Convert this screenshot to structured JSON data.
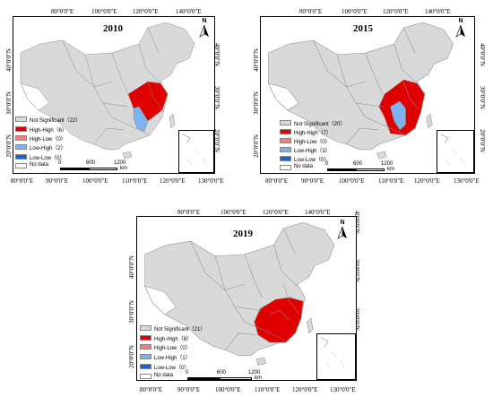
{
  "colors": {
    "not_significant": "#d9d9d9",
    "high_high": "#e00000",
    "high_low": "#f08080",
    "low_high": "#7fb3f0",
    "low_low": "#1f5fd6",
    "no_data": "#ffffff",
    "boundary": "#8c8c8c"
  },
  "icons": {
    "north_arrow": "north-arrow-icon"
  },
  "panels": [
    {
      "year": "2010",
      "north": "N",
      "top_ticks": [
        "80°0'0\"E",
        "100°0'0\"E",
        "120°0'0\"E",
        "140°0'0\"E"
      ],
      "bottom_ticks": [
        "80°0'0\"E",
        "90°0'0\"E",
        "100°0'0\"E",
        "110°0'0\"E",
        "120°0'0\"E",
        "130°0'0\"E"
      ],
      "left_ticks": [
        "40°0'0\"N",
        "30°0'0\"N",
        "20°0'0\"N"
      ],
      "right_ticks": [
        "40°0'0\"N",
        "30°0'0\"N",
        "20°0'0\"N"
      ],
      "legend": [
        {
          "key": "not_significant",
          "label": "Not Significant（22）"
        },
        {
          "key": "high_high",
          "label": "High-High（6）"
        },
        {
          "key": "high_low",
          "label": "High-Low（0）"
        },
        {
          "key": "low_high",
          "label": "Low-High（2）"
        },
        {
          "key": "low_low",
          "label": "Low-Low（0）"
        },
        {
          "key": "no_data",
          "label": "No data"
        }
      ],
      "scale": {
        "ticks": [
          "0",
          "600",
          "1200"
        ],
        "unit": "km"
      }
    },
    {
      "year": "2015",
      "north": "N",
      "top_ticks": [
        "80°0'0\"E",
        "100°0'0\"E",
        "120°0'0\"E",
        "140°0'0\"E"
      ],
      "bottom_ticks": [
        "80°0'0\"E",
        "90°0'0\"E",
        "100°0'0\"E",
        "110°0'0\"E",
        "120°0'0\"E",
        "130°0'0\"E"
      ],
      "left_ticks": [
        "40°0'0\"N",
        "30°0'0\"N",
        "20°0'0\"N"
      ],
      "right_ticks": [
        "40°0'0\"N",
        "30°0'0\"N",
        "20°0'0\"N"
      ],
      "legend": [
        {
          "key": "not_significant",
          "label": "Not Significant（20）"
        },
        {
          "key": "high_high",
          "label": "High-High（7）"
        },
        {
          "key": "high_low",
          "label": "High-Low（0）"
        },
        {
          "key": "low_high",
          "label": "Low-High（3）"
        },
        {
          "key": "low_low",
          "label": "Low-Low（0）"
        },
        {
          "key": "no_data",
          "label": "No data"
        }
      ],
      "scale": {
        "ticks": [
          "0",
          "600",
          "1200"
        ],
        "unit": "km"
      }
    },
    {
      "year": "2019",
      "north": "N",
      "top_ticks": [
        "80°0'0\"E",
        "100°0'0\"E",
        "120°0'0\"E",
        "140°0'0\"E"
      ],
      "bottom_ticks": [
        "80°0'0\"E",
        "90°0'0\"E",
        "100°0'0\"E",
        "110°0'0\"E",
        "120°0'0\"E",
        "130°0'0\"E"
      ],
      "left_ticks": [
        "40°0'0\"N",
        "30°0'0\"N",
        "20°0'0\"N"
      ],
      "right_ticks": [
        "40°0'0\"N",
        "30°0'0\"N",
        "20°0'0\"N"
      ],
      "legend": [
        {
          "key": "not_significant",
          "label": "Not Significant（21）"
        },
        {
          "key": "high_high",
          "label": "High-High（8）"
        },
        {
          "key": "high_low",
          "label": "High-Low（0）"
        },
        {
          "key": "low_high",
          "label": "Low-High（1）"
        },
        {
          "key": "low_low",
          "label": "Low-Low（0）"
        },
        {
          "key": "no_data",
          "label": "No data"
        }
      ],
      "scale": {
        "ticks": [
          "0",
          "600",
          "1200"
        ],
        "unit": "km"
      }
    }
  ]
}
